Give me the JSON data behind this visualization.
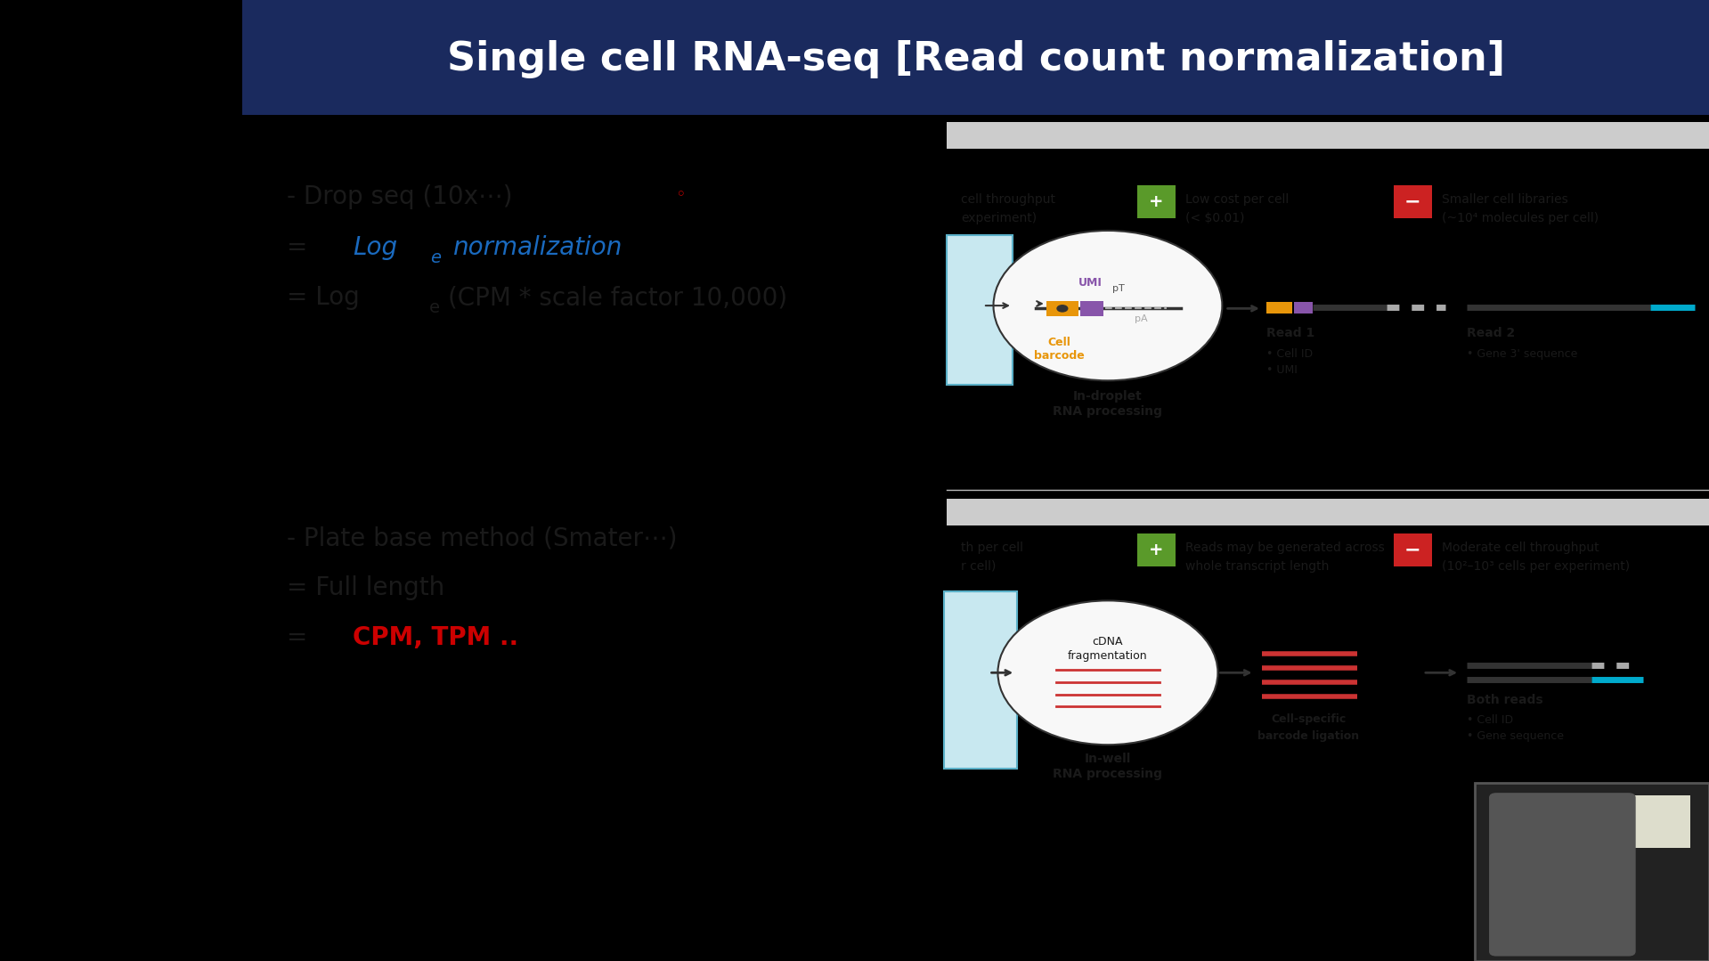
{
  "title": "Single cell RNA-seq [Read count normalization]",
  "title_color": "#FFFFFF",
  "title_bg_color": "#1a2a5e",
  "slide_bg_color": "#FFFFFF",
  "line1_black": "- Drop seq (10x⋯) ",
  "line1_red_dot": "◦",
  "line2_blue": "Log",
  "line2_blue_sub": "e",
  "line2_blue2": "normalization",
  "line4": "- Plate base method (Smater⋯)",
  "line5": "= Full length",
  "line6_red": "CPM, TPM ..",
  "top_section_text1": "cell throughput",
  "top_section_text2": "experiment)",
  "top_green_label1": "Low cost per cell",
  "top_green_label2": "(< $0.01)",
  "top_red_label1": "Smaller cell libraries",
  "top_red_label2": "(~10⁴ molecules per cell)",
  "mid_circle_label": "In-droplet\nRNA processing",
  "read1_label": "Read 1",
  "read1_bullet1": "• Cell ID",
  "read1_bullet2": "• UMI",
  "read2_label": "Read 2",
  "read2_bullet": "• Gene 3' sequence",
  "umi_label": "UMI",
  "cell_barcode_label": "Cell\nbarcode",
  "pt_label": "pT",
  "pa_label": "pA",
  "bot_section_text1": "th per cell",
  "bot_section_text2": "r cell)",
  "bot_green_label1": "Reads may be generated across",
  "bot_green_label2": "whole transcript length",
  "bot_red_label1": "Moderate cell throughput",
  "bot_red_label2": "(10²–10³ cells per experiment)",
  "bot_circle_label": "In-well\nRNA processing",
  "cdna_label": "cDNA\nfragmentation",
  "bot_read_label1a": "Cell-specific",
  "bot_read_label1b": "barcode ligation",
  "bot_read_label2": "Both reads",
  "bot_read_bullet1": "• Cell ID",
  "bot_read_bullet2": "• Gene sequence",
  "outer_bg": "#000000"
}
